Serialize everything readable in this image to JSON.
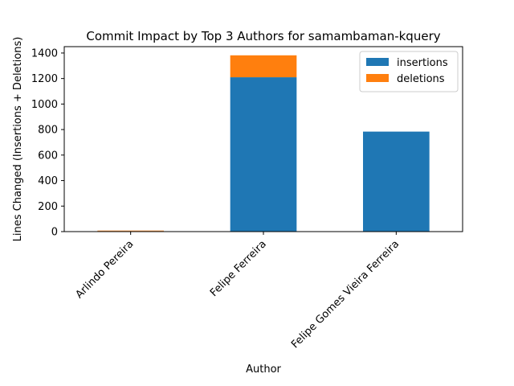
{
  "chart_data": {
    "type": "bar",
    "stacked": true,
    "title": "Commit Impact by Top 3 Authors for samambaman-kquery",
    "xlabel": "Author",
    "ylabel": "Lines Changed (Insertions + Deletions)",
    "categories": [
      "Arlindo Pereira",
      "Felipe Ferreira",
      "Felipe Gomes Vieira Ferreira"
    ],
    "series": [
      {
        "name": "insertions",
        "values": [
          4,
          1210,
          784
        ],
        "color": "#1f77b4"
      },
      {
        "name": "deletions",
        "values": [
          4,
          172,
          0
        ],
        "color": "#ff7f0e"
      }
    ],
    "ylim": [
      0,
      1450
    ],
    "yticks": [
      0,
      200,
      400,
      600,
      800,
      1000,
      1200,
      1400
    ],
    "grid": false,
    "legend_position": "top-right"
  }
}
